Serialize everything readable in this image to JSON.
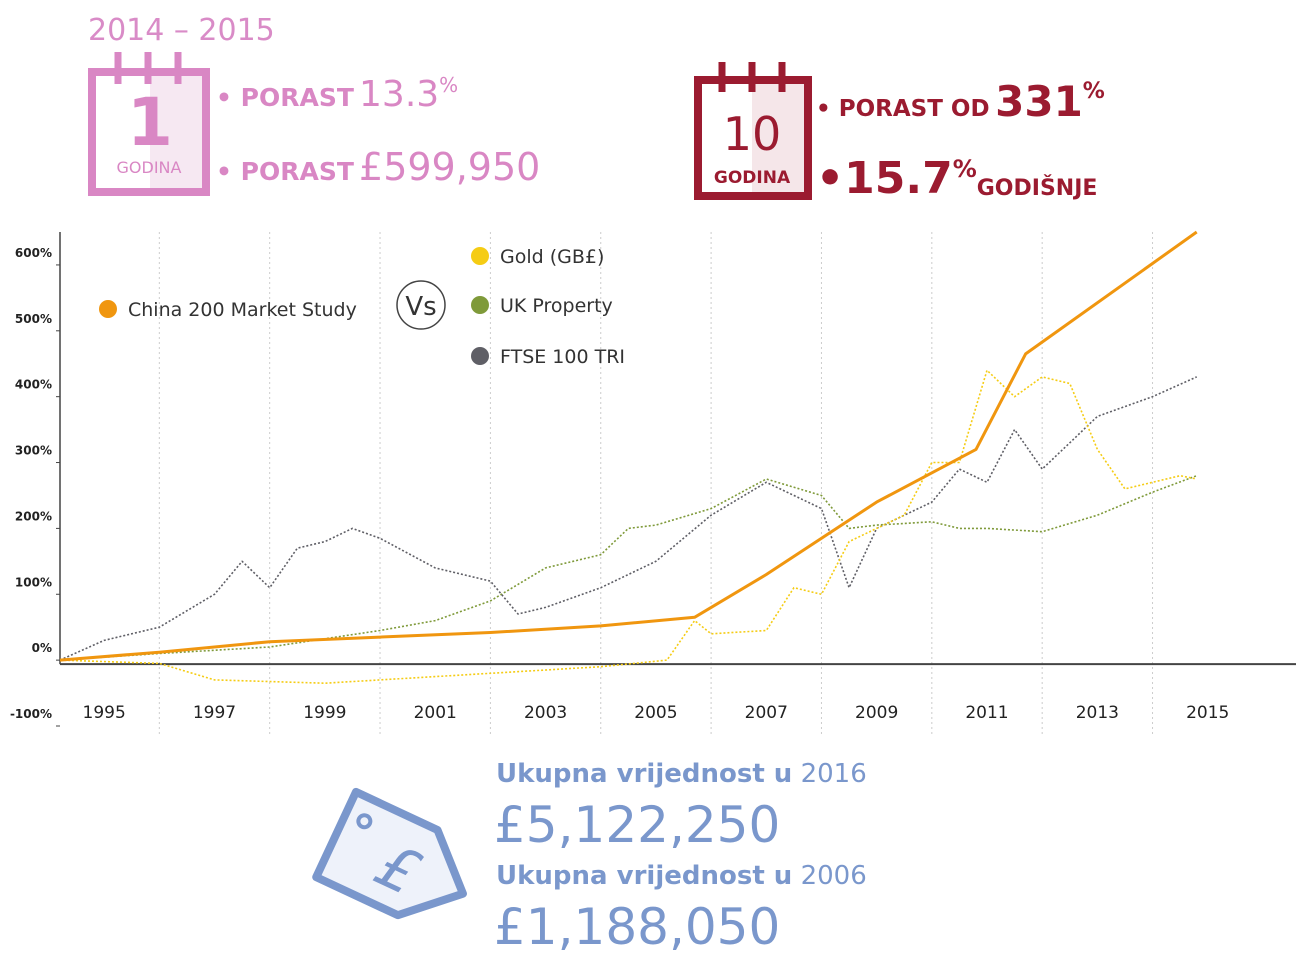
{
  "header_left": {
    "period": "2014 – 2015",
    "calendar_number": "1",
    "calendar_label": "GODINA",
    "line1_label": "• PORAST",
    "line1_value": "13.3",
    "line1_unit": "%",
    "line2_label": "• PORAST",
    "line2_value": "£599,950"
  },
  "header_right": {
    "calendar_number": "10",
    "calendar_label": "GODINA",
    "line1_label": "• PORAST OD",
    "line1_value": "331",
    "line1_unit": "%",
    "line2_bullet": "•",
    "line2_value": "15.7",
    "line2_unit": "%",
    "line2_label": "GODIŠNJE"
  },
  "footer": {
    "line1_label": "Ukupna vrijednost u",
    "line1_year": "2016",
    "value1": "£5,122,250",
    "line2_label": "Ukupna vrijednost u",
    "line2_year": "2006",
    "value2": "£1,188,050"
  },
  "legend_vs": "Vs",
  "chart_data": {
    "type": "line",
    "xlim": [
      1994.2,
      2016.6
    ],
    "xticks": [
      1995,
      1997,
      1999,
      2001,
      2003,
      2005,
      2007,
      2009,
      2011,
      2013,
      2015
    ],
    "x_gridlines": [
      1996,
      1998,
      2000,
      2002,
      2004,
      2006,
      2008,
      2010,
      2012,
      2014
    ],
    "ylim": [
      -100,
      650
    ],
    "yticks": [
      {
        "value": -100,
        "label": "-100%"
      },
      {
        "value": 0,
        "label": "0%"
      },
      {
        "value": 100,
        "label": "100%"
      },
      {
        "value": 200,
        "label": "200%"
      },
      {
        "value": 300,
        "label": "300%"
      },
      {
        "value": 400,
        "label": "400%"
      },
      {
        "value": 500,
        "label": "500%"
      },
      {
        "value": 600,
        "label": "600%"
      }
    ],
    "grid": true,
    "series": [
      {
        "name": "China 200 Market Study",
        "color": "#f0960f",
        "style": "solid",
        "x": [
          1994.2,
          1996,
          1998,
          2000,
          2002,
          2004,
          2005.7,
          2007,
          2009,
          2010.8,
          2011.7,
          2014.8
        ],
        "values": [
          0,
          12,
          28,
          35,
          42,
          52,
          65,
          130,
          240,
          320,
          465,
          650
        ]
      },
      {
        "name": "Gold (GB£)",
        "color": "#f5cc14",
        "style": "dotted",
        "x": [
          1994.2,
          1996,
          1997,
          1999,
          2000,
          2002,
          2004,
          2005.2,
          2005.7,
          2006,
          2007,
          2007.5,
          2008,
          2008.5,
          2009,
          2009.5,
          2010,
          2010.5,
          2011,
          2011.5,
          2012,
          2012.5,
          2013,
          2013.5,
          2014,
          2014.5,
          2014.8
        ],
        "values": [
          0,
          -5,
          -30,
          -35,
          -30,
          -20,
          -10,
          0,
          60,
          40,
          45,
          110,
          100,
          180,
          200,
          220,
          300,
          300,
          440,
          400,
          430,
          420,
          320,
          260,
          270,
          280,
          275
        ]
      },
      {
        "name": "UK Property",
        "color": "#7f9a3a",
        "style": "dotted",
        "x": [
          1994.2,
          1996,
          1998,
          2000,
          2001,
          2002,
          2003,
          2004,
          2004.5,
          2005,
          2006,
          2007,
          2008,
          2008.5,
          2009,
          2010,
          2010.5,
          2011,
          2012,
          2013,
          2014,
          2014.8
        ],
        "values": [
          0,
          10,
          20,
          45,
          60,
          90,
          140,
          160,
          200,
          205,
          230,
          275,
          250,
          200,
          205,
          210,
          200,
          200,
          195,
          220,
          255,
          280
        ]
      },
      {
        "name": "FTSE 100 TRI",
        "color": "#5f5f66",
        "style": "dotted",
        "x": [
          1994.2,
          1995,
          1996,
          1997,
          1997.5,
          1998,
          1998.5,
          1999,
          1999.5,
          2000,
          2001,
          2002,
          2002.5,
          2003,
          2004,
          2005,
          2006,
          2007,
          2008,
          2008.5,
          2009,
          2010,
          2010.5,
          2011,
          2011.5,
          2012,
          2012.5,
          2013,
          2014,
          2014.8
        ],
        "values": [
          0,
          30,
          50,
          100,
          150,
          110,
          170,
          180,
          200,
          185,
          140,
          120,
          70,
          80,
          110,
          150,
          220,
          270,
          230,
          110,
          200,
          240,
          290,
          270,
          350,
          290,
          330,
          370,
          400,
          430
        ]
      }
    ]
  }
}
